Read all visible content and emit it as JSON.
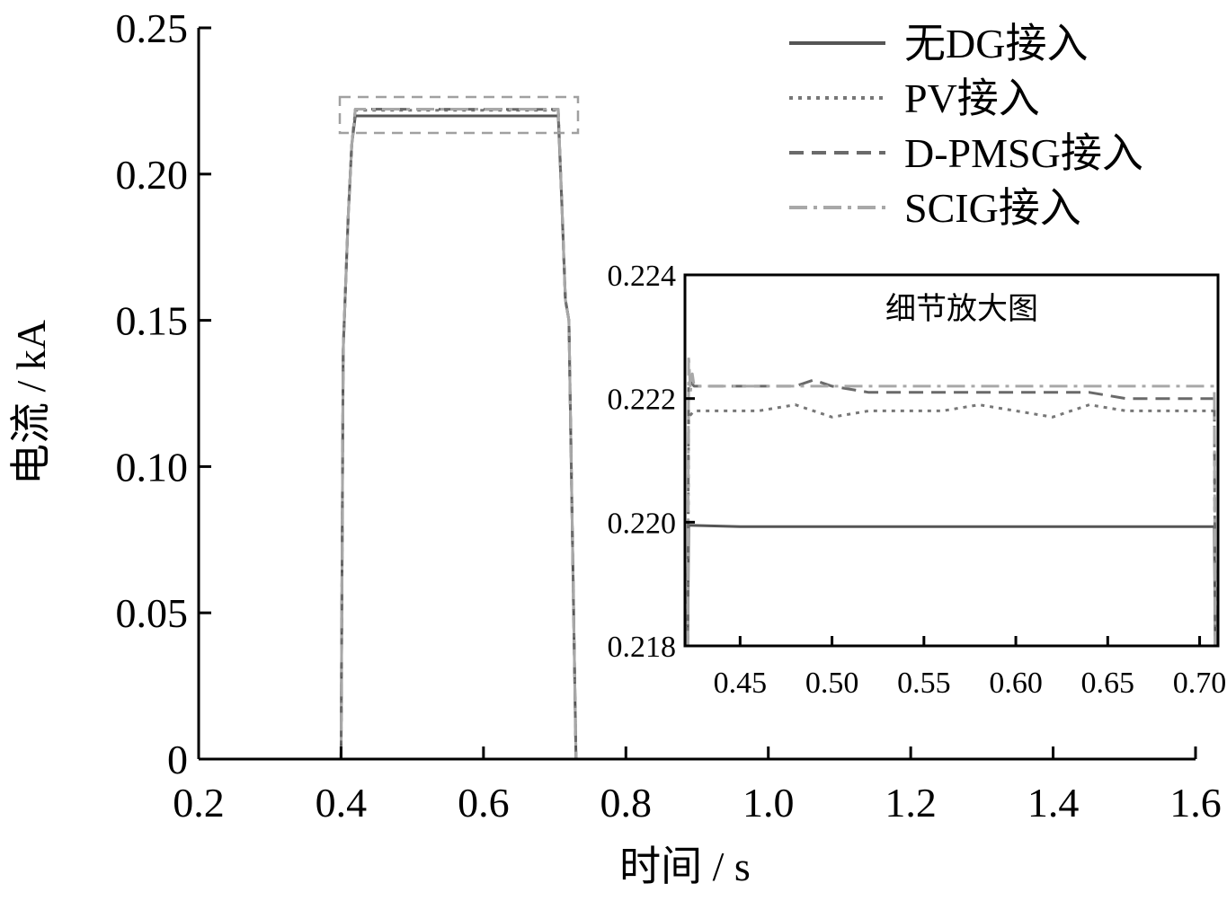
{
  "chart_data": [
    {
      "type": "line",
      "xlabel": "时间 / s",
      "ylabel": "电流 / kA",
      "xlim": [
        0.2,
        1.6
      ],
      "ylim": [
        0,
        0.25
      ],
      "xticks": [
        "0.2",
        "0.4",
        "0.6",
        "0.8",
        "1.0",
        "1.2",
        "1.4",
        "1.6"
      ],
      "yticks": [
        "0",
        "0.05",
        "0.10",
        "0.15",
        "0.20",
        "0.25"
      ],
      "grid": false,
      "legend_position": "top-right",
      "series": [
        {
          "name": "无DG接入",
          "style": "solid",
          "color": "#555555",
          "x": [
            0.2,
            0.4,
            0.403,
            0.41,
            0.415,
            0.42,
            0.705,
            0.71,
            0.715,
            0.72,
            0.73,
            0.735,
            1.6
          ],
          "y": [
            0,
            0,
            0.14,
            0.185,
            0.21,
            0.2199,
            0.2199,
            0.19,
            0.157,
            0.15,
            0,
            0,
            0
          ]
        },
        {
          "name": "PV接入",
          "style": "dotted",
          "color": "#777777",
          "x": [
            0.2,
            0.4,
            0.403,
            0.41,
            0.415,
            0.42,
            0.705,
            0.71,
            0.715,
            0.72,
            0.73,
            0.735,
            1.6
          ],
          "y": [
            0,
            0,
            0.14,
            0.185,
            0.21,
            0.2218,
            0.2218,
            0.19,
            0.157,
            0.15,
            0,
            0,
            0
          ]
        },
        {
          "name": "D-PMSG接入",
          "style": "dashed",
          "color": "#6a6a6a",
          "x": [
            0.2,
            0.4,
            0.403,
            0.41,
            0.415,
            0.42,
            0.705,
            0.71,
            0.715,
            0.72,
            0.73,
            0.735,
            1.6
          ],
          "y": [
            0,
            0,
            0.14,
            0.185,
            0.21,
            0.2222,
            0.2221,
            0.19,
            0.157,
            0.15,
            0,
            0,
            0
          ]
        },
        {
          "name": "SCIG接入",
          "style": "dashdot",
          "color": "#a8a8a8",
          "x": [
            0.2,
            0.4,
            0.403,
            0.41,
            0.415,
            0.42,
            0.705,
            0.71,
            0.715,
            0.72,
            0.73,
            0.735,
            1.6
          ],
          "y": [
            0,
            0,
            0.14,
            0.185,
            0.21,
            0.2222,
            0.2222,
            0.19,
            0.157,
            0.15,
            0,
            0,
            0
          ]
        }
      ]
    },
    {
      "type": "line",
      "title": "细节放大图",
      "xlim": [
        0.42,
        0.71
      ],
      "ylim": [
        0.218,
        0.224
      ],
      "xticks": [
        "0.45",
        "0.50",
        "0.55",
        "0.60",
        "0.65",
        "0.70"
      ],
      "yticks": [
        "0.218",
        "0.220",
        "0.222",
        "0.224"
      ],
      "grid": false,
      "series": [
        {
          "name": "无DG接入",
          "style": "solid",
          "color": "#555555",
          "x": [
            0.42,
            0.4215,
            0.422,
            0.45,
            0.5,
            0.55,
            0.6,
            0.65,
            0.7,
            0.708,
            0.7085
          ],
          "y": [
            0.218,
            0.218,
            0.21995,
            0.21993,
            0.21993,
            0.21993,
            0.21993,
            0.21993,
            0.21993,
            0.21993,
            0.218
          ]
        },
        {
          "name": "PV接入",
          "style": "dotted",
          "color": "#777777",
          "x": [
            0.42,
            0.4215,
            0.422,
            0.425,
            0.44,
            0.46,
            0.48,
            0.5,
            0.52,
            0.54,
            0.56,
            0.58,
            0.6,
            0.62,
            0.64,
            0.66,
            0.68,
            0.7,
            0.708,
            0.7085
          ],
          "y": [
            0.218,
            0.218,
            0.2217,
            0.2218,
            0.2218,
            0.2218,
            0.2219,
            0.2217,
            0.2218,
            0.2218,
            0.2218,
            0.2219,
            0.2218,
            0.2217,
            0.2219,
            0.2218,
            0.2218,
            0.2218,
            0.2218,
            0.218
          ]
        },
        {
          "name": "D-PMSG接入",
          "style": "dashed",
          "color": "#6a6a6a",
          "x": [
            0.42,
            0.4215,
            0.422,
            0.425,
            0.44,
            0.46,
            0.48,
            0.49,
            0.5,
            0.52,
            0.54,
            0.56,
            0.58,
            0.6,
            0.62,
            0.64,
            0.66,
            0.68,
            0.7,
            0.708,
            0.7085
          ],
          "y": [
            0.218,
            0.218,
            0.2223,
            0.2222,
            0.2222,
            0.2222,
            0.2222,
            0.2223,
            0.2222,
            0.2221,
            0.2221,
            0.2221,
            0.2221,
            0.2221,
            0.2221,
            0.2221,
            0.222,
            0.222,
            0.222,
            0.222,
            0.218
          ]
        },
        {
          "name": "SCIG接入",
          "style": "dashdot",
          "color": "#a8a8a8",
          "x": [
            0.42,
            0.4215,
            0.422,
            0.423,
            0.424,
            0.425,
            0.43,
            0.45,
            0.5,
            0.55,
            0.6,
            0.65,
            0.7,
            0.708,
            0.7085
          ],
          "y": [
            0.218,
            0.218,
            0.2227,
            0.2221,
            0.2224,
            0.2222,
            0.2222,
            0.2222,
            0.2222,
            0.2222,
            0.2222,
            0.2222,
            0.2222,
            0.2222,
            0.218
          ]
        }
      ]
    }
  ]
}
